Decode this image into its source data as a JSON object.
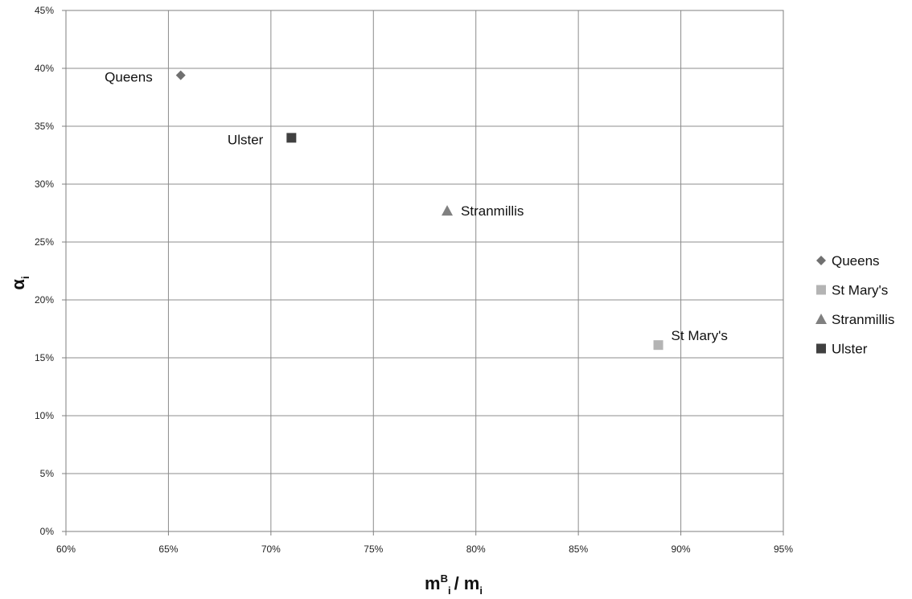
{
  "chart_data": {
    "type": "scatter",
    "title": "",
    "xlabel": {
      "main": "m",
      "sup": "B",
      "sub": "i",
      "rest": "/ m",
      "rest_sub": "i"
    },
    "ylabel": {
      "main": "α",
      "sub": "i"
    },
    "xlim": [
      0.6,
      0.95
    ],
    "ylim": [
      0.0,
      0.45
    ],
    "x_ticks": [
      0.6,
      0.65,
      0.7,
      0.75,
      0.8,
      0.85,
      0.9,
      0.95
    ],
    "x_tick_labels": [
      "60%",
      "65%",
      "70%",
      "75%",
      "80%",
      "85%",
      "90%",
      "95%"
    ],
    "y_ticks": [
      0.0,
      0.05,
      0.1,
      0.15,
      0.2,
      0.25,
      0.3,
      0.35,
      0.4,
      0.45
    ],
    "y_tick_labels": [
      "0%",
      "5%",
      "10%",
      "15%",
      "20%",
      "25%",
      "30%",
      "35%",
      "40%",
      "45%"
    ],
    "grid": true,
    "legend_position": "right",
    "series": [
      {
        "name": "Queens",
        "marker": "diamond",
        "color": "#707070",
        "x": 0.656,
        "y": 0.394,
        "label": "Queens",
        "label_side": "left"
      },
      {
        "name": "St Mary's",
        "marker": "square",
        "color": "#b4b4b4",
        "x": 0.889,
        "y": 0.161,
        "label": "St Mary's",
        "label_side": "right-above"
      },
      {
        "name": "Stranmillis",
        "marker": "triangle",
        "color": "#808080",
        "x": 0.786,
        "y": 0.277,
        "label": "Stranmillis",
        "label_side": "right"
      },
      {
        "name": "Ulster",
        "marker": "square",
        "color": "#404040",
        "x": 0.71,
        "y": 0.34,
        "label": "Ulster",
        "label_side": "left"
      }
    ]
  }
}
